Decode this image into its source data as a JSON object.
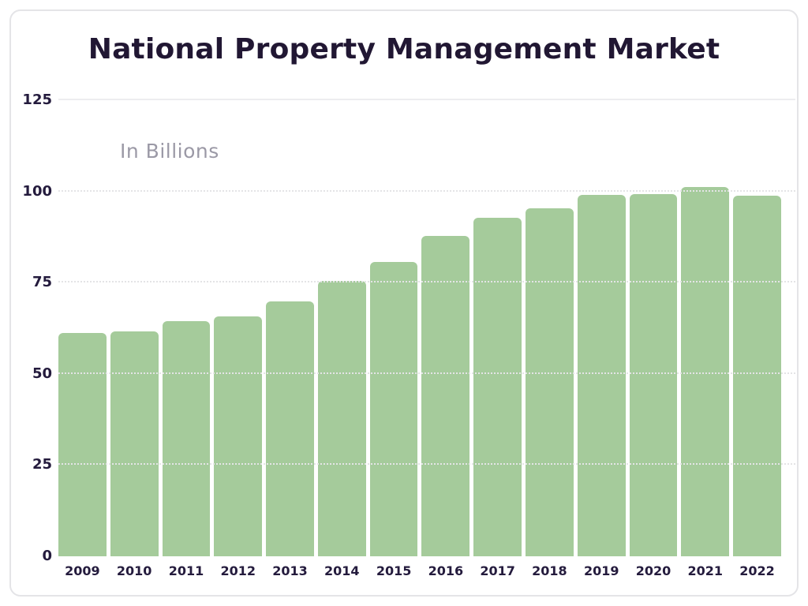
{
  "page": {
    "title": "National Property Management Market",
    "subtitle": "In Billions"
  },
  "chart_data": {
    "type": "bar",
    "title": "National Property Management Market",
    "subtitle": "In Billions",
    "categories": [
      "2009",
      "2010",
      "2011",
      "2012",
      "2013",
      "2014",
      "2015",
      "2016",
      "2017",
      "2018",
      "2019",
      "2020",
      "2021",
      "2022"
    ],
    "values": [
      61.3,
      61.6,
      64.4,
      65.8,
      69.9,
      75.5,
      80.6,
      87.8,
      92.8,
      95.3,
      99.0,
      99.3,
      101.2,
      98.9
    ],
    "xlabel": "",
    "ylabel": "In Billions",
    "ylim": [
      0,
      125
    ],
    "yticks": [
      0,
      25,
      50,
      75,
      100,
      125
    ],
    "grid": true,
    "legend_position": "none",
    "bar_color": "#a5cb9b",
    "title_color": "#211733",
    "subtitle_color": "#9b99a6",
    "axis_label_color": "#241b3d"
  }
}
